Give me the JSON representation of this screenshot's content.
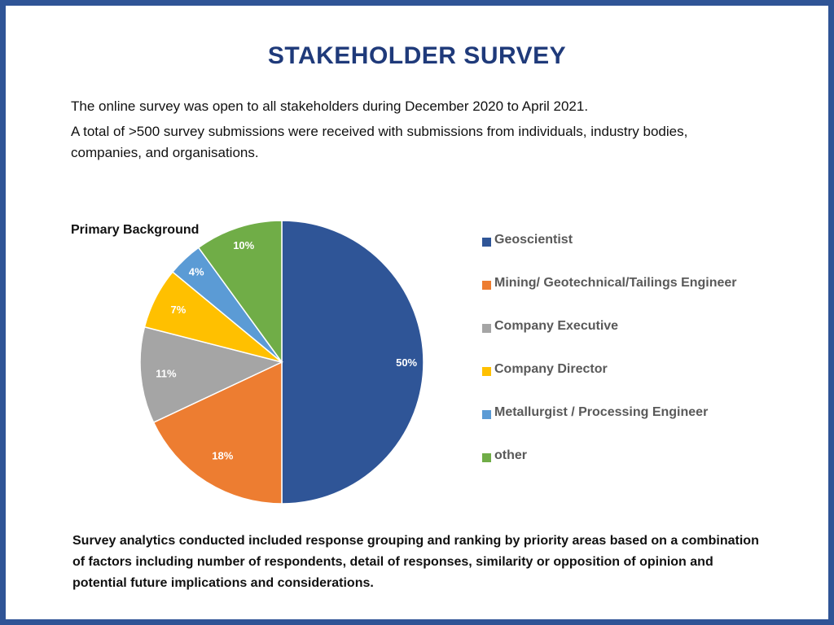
{
  "slide": {
    "title": "STAKEHOLDER SURVEY",
    "intro": [
      "The online survey was open to all stakeholders during December 2020 to April 2021.",
      "A total of >500 survey submissions were received with submissions from individuals, industry bodies, companies, and organisations."
    ],
    "footer": "Survey analytics conducted included response grouping and ranking by priority areas based on a combination of factors including number of respondents, detail of responses, similarity or opposition of opinion and potential future implications and considerations."
  },
  "chart_data": {
    "type": "pie",
    "title": "Primary Background",
    "categories": [
      "Geoscientist",
      "Mining/ Geotechnical/Tailings Engineer",
      "Company Executive",
      "Company Director",
      "Metallurgist / Processing Engineer",
      "other"
    ],
    "values": [
      50,
      18,
      11,
      7,
      4,
      10
    ],
    "labels": [
      "50%",
      "18%",
      "11%",
      "7%",
      "4%",
      "10%"
    ],
    "colors": [
      "#2f5597",
      "#ed7d31",
      "#a5a5a5",
      "#ffc000",
      "#5b9bd5",
      "#70ad47"
    ],
    "legend_position": "right",
    "start": "12 o'clock, clockwise"
  }
}
